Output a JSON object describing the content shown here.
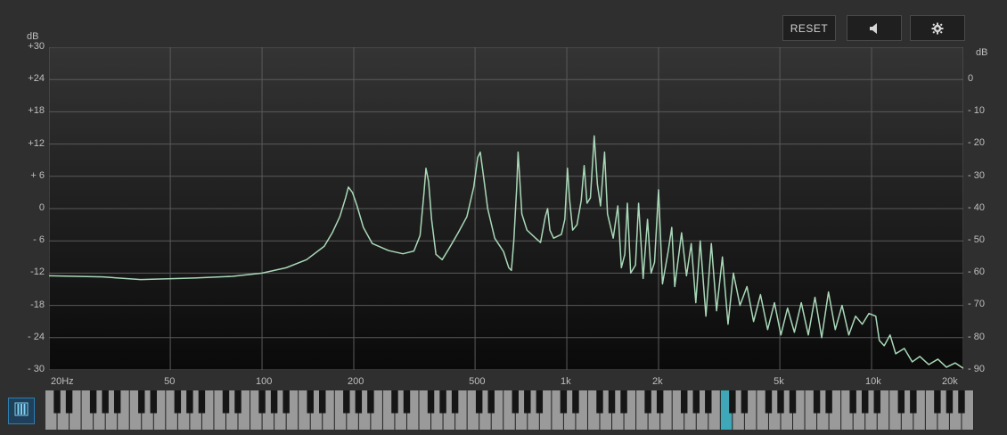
{
  "toolbar": {
    "reset_label": "RESET",
    "speaker_icon": "speaker-icon",
    "settings_icon": "gear-icon"
  },
  "left_axis": {
    "unit": "dB",
    "ticks": [
      "+30",
      "+24",
      "+18",
      "+12",
      "+ 6",
      "0",
      "- 6",
      "-12",
      "-18",
      "- 24",
      "- 30"
    ]
  },
  "right_axis": {
    "unit": "dB",
    "ticks": [
      "0",
      "- 10",
      "- 20",
      "- 30",
      "- 40",
      "- 50",
      "- 60",
      "- 70",
      "- 80",
      "- 90"
    ]
  },
  "x_axis": {
    "ticks": [
      {
        "freq": 20,
        "label": "20Hz"
      },
      {
        "freq": 50,
        "label": "50"
      },
      {
        "freq": 100,
        "label": "100"
      },
      {
        "freq": 200,
        "label": "200"
      },
      {
        "freq": 500,
        "label": "500"
      },
      {
        "freq": 1000,
        "label": "1k"
      },
      {
        "freq": 2000,
        "label": "2k"
      },
      {
        "freq": 5000,
        "label": "5k"
      },
      {
        "freq": 10000,
        "label": "10k"
      },
      {
        "freq": 20000,
        "label": "20k"
      }
    ]
  },
  "piano_button_icon": "piano-keys-icon",
  "colors": {
    "curve": "#a9d8b8",
    "grid": "#5a5a5a",
    "highlight_key": "#3fa7b5",
    "accent": "#2c7fb0"
  },
  "keyboard": {
    "highlight_note": "C5 (~1k)"
  },
  "chart_data": {
    "type": "line",
    "xscale": "log",
    "xlim": [
      20,
      20000
    ],
    "ylim_left": [
      -30,
      30
    ],
    "ylim_right": [
      -90,
      0
    ],
    "ylabel_left": "dB",
    "ylabel_right": "dB",
    "grid": true,
    "series": [
      {
        "values_db_left_scale": [
          [
            20,
            -12.5
          ],
          [
            30,
            -12.7
          ],
          [
            40,
            -13.2
          ],
          [
            60,
            -12.9
          ],
          [
            80,
            -12.6
          ],
          [
            100,
            -12.0
          ],
          [
            120,
            -11.0
          ],
          [
            140,
            -9.5
          ],
          [
            160,
            -7.0
          ],
          [
            170,
            -4.5
          ],
          [
            180,
            -1.5
          ],
          [
            188,
            2.0
          ],
          [
            192,
            4.0
          ],
          [
            198,
            3.0
          ],
          [
            205,
            0.5
          ],
          [
            215,
            -3.5
          ],
          [
            230,
            -6.5
          ],
          [
            260,
            -7.8
          ],
          [
            290,
            -8.4
          ],
          [
            315,
            -7.9
          ],
          [
            330,
            -5.0
          ],
          [
            340,
            3.0
          ],
          [
            345,
            7.5
          ],
          [
            352,
            5.0
          ],
          [
            360,
            -2.0
          ],
          [
            372,
            -8.5
          ],
          [
            390,
            -9.5
          ],
          [
            410,
            -7.5
          ],
          [
            440,
            -4.5
          ],
          [
            470,
            -1.5
          ],
          [
            495,
            4.0
          ],
          [
            510,
            9.5
          ],
          [
            520,
            10.5
          ],
          [
            533,
            6.0
          ],
          [
            550,
            0.0
          ],
          [
            580,
            -5.5
          ],
          [
            620,
            -8.0
          ],
          [
            645,
            -11.0
          ],
          [
            658,
            -11.5
          ],
          [
            670,
            -6.0
          ],
          [
            685,
            4.0
          ],
          [
            692,
            10.5
          ],
          [
            700,
            6.0
          ],
          [
            712,
            -1.0
          ],
          [
            740,
            -4.0
          ],
          [
            790,
            -5.5
          ],
          [
            820,
            -6.3
          ],
          [
            850,
            -1.5
          ],
          [
            865,
            0.0
          ],
          [
            880,
            -4.0
          ],
          [
            905,
            -5.5
          ],
          [
            960,
            -4.8
          ],
          [
            985,
            -2.0
          ],
          [
            1005,
            7.5
          ],
          [
            1020,
            2.0
          ],
          [
            1045,
            -4.0
          ],
          [
            1080,
            -3.0
          ],
          [
            1115,
            1.5
          ],
          [
            1140,
            8.0
          ],
          [
            1165,
            1.0
          ],
          [
            1195,
            2.0
          ],
          [
            1230,
            13.5
          ],
          [
            1260,
            4.5
          ],
          [
            1290,
            0.5
          ],
          [
            1330,
            10.5
          ],
          [
            1360,
            -1.0
          ],
          [
            1420,
            -5.5
          ],
          [
            1470,
            0.5
          ],
          [
            1510,
            -11.0
          ],
          [
            1550,
            -8.5
          ],
          [
            1580,
            1.0
          ],
          [
            1620,
            -12.0
          ],
          [
            1680,
            -10.5
          ],
          [
            1720,
            1.0
          ],
          [
            1780,
            -13.0
          ],
          [
            1840,
            -2.0
          ],
          [
            1890,
            -12.0
          ],
          [
            1940,
            -10.0
          ],
          [
            2000,
            3.5
          ],
          [
            2060,
            -14.0
          ],
          [
            2150,
            -8.0
          ],
          [
            2210,
            -3.5
          ],
          [
            2260,
            -14.5
          ],
          [
            2380,
            -4.5
          ],
          [
            2470,
            -12.5
          ],
          [
            2560,
            -6.5
          ],
          [
            2650,
            -17.5
          ],
          [
            2740,
            -6.0
          ],
          [
            2860,
            -20.0
          ],
          [
            2980,
            -6.5
          ],
          [
            3100,
            -19.0
          ],
          [
            3240,
            -9.0
          ],
          [
            3380,
            -21.5
          ],
          [
            3520,
            -12.0
          ],
          [
            3700,
            -18.0
          ],
          [
            3900,
            -14.5
          ],
          [
            4100,
            -21.0
          ],
          [
            4320,
            -16.0
          ],
          [
            4560,
            -22.5
          ],
          [
            4800,
            -17.5
          ],
          [
            5040,
            -23.5
          ],
          [
            5300,
            -18.5
          ],
          [
            5580,
            -23.0
          ],
          [
            5880,
            -17.5
          ],
          [
            6200,
            -23.5
          ],
          [
            6520,
            -16.5
          ],
          [
            6860,
            -24.0
          ],
          [
            7220,
            -15.5
          ],
          [
            7600,
            -22.5
          ],
          [
            8000,
            -18.0
          ],
          [
            8420,
            -23.5
          ],
          [
            8860,
            -20.0
          ],
          [
            9320,
            -21.5
          ],
          [
            9800,
            -19.5
          ],
          [
            10320,
            -20.0
          ],
          [
            10600,
            -24.5
          ],
          [
            11000,
            -25.5
          ],
          [
            11500,
            -23.5
          ],
          [
            12000,
            -27.0
          ],
          [
            12800,
            -26.0
          ],
          [
            13600,
            -28.5
          ],
          [
            14400,
            -27.5
          ],
          [
            15400,
            -29.0
          ],
          [
            16500,
            -28.0
          ],
          [
            17600,
            -29.5
          ],
          [
            18800,
            -28.7
          ],
          [
            20000,
            -29.7
          ]
        ]
      }
    ]
  }
}
